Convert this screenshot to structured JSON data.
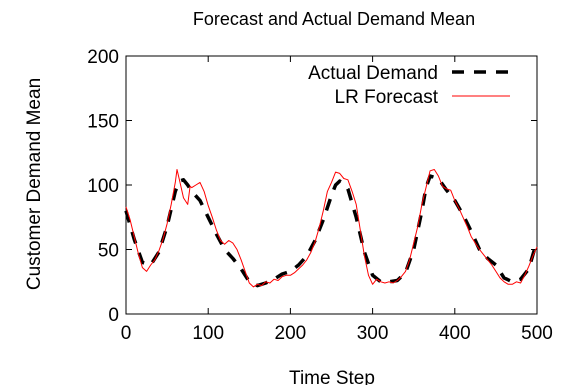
{
  "chart_data": {
    "type": "line",
    "title": "Forecast and Actual Demand Mean",
    "xlabel": "Time Step",
    "ylabel": "Customer Demand Mean",
    "xlim": [
      0,
      500
    ],
    "ylim": [
      0,
      200
    ],
    "xticks": [
      0,
      100,
      200,
      300,
      400,
      500
    ],
    "yticks": [
      0,
      50,
      100,
      150,
      200
    ],
    "grid": false,
    "legend_position": "top-right",
    "series": [
      {
        "name": "Actual Demand",
        "color": "#000000",
        "style": "dashed",
        "x": [
          0,
          10,
          20,
          30,
          40,
          50,
          60,
          65,
          70,
          75,
          80,
          90,
          100,
          110,
          120,
          130,
          140,
          150,
          160,
          170,
          180,
          190,
          200,
          210,
          220,
          230,
          240,
          250,
          255,
          260,
          265,
          270,
          280,
          290,
          300,
          310,
          320,
          330,
          340,
          350,
          360,
          365,
          370,
          380,
          390,
          400,
          410,
          420,
          430,
          440,
          450,
          460,
          470,
          480,
          490,
          500
        ],
        "y": [
          80,
          58,
          40,
          38,
          48,
          68,
          95,
          103,
          104,
          100,
          95,
          88,
          75,
          62,
          50,
          43,
          35,
          25,
          22,
          24,
          27,
          31,
          33,
          38,
          45,
          57,
          73,
          92,
          100,
          103,
          101,
          97,
          75,
          48,
          30,
          25,
          25,
          26,
          32,
          50,
          80,
          98,
          107,
          105,
          96,
          88,
          77,
          64,
          50,
          43,
          38,
          28,
          25,
          27,
          35,
          57
        ]
      },
      {
        "name": "LR Forecast",
        "color": "#ff0000",
        "style": "solid",
        "x": [
          0,
          5,
          10,
          15,
          20,
          25,
          30,
          35,
          40,
          45,
          50,
          55,
          60,
          62,
          65,
          70,
          75,
          78,
          80,
          85,
          90,
          95,
          100,
          105,
          110,
          115,
          120,
          125,
          130,
          135,
          140,
          145,
          150,
          155,
          160,
          165,
          170,
          175,
          180,
          185,
          190,
          195,
          200,
          205,
          210,
          215,
          220,
          225,
          230,
          235,
          240,
          245,
          250,
          255,
          260,
          265,
          270,
          275,
          280,
          285,
          290,
          295,
          300,
          305,
          310,
          315,
          320,
          325,
          330,
          335,
          340,
          345,
          350,
          355,
          360,
          365,
          370,
          375,
          380,
          385,
          390,
          395,
          400,
          405,
          410,
          415,
          420,
          425,
          430,
          435,
          440,
          445,
          450,
          455,
          460,
          465,
          470,
          475,
          480,
          485,
          490,
          495,
          500
        ],
        "y": [
          83,
          73,
          60,
          47,
          36,
          33,
          38,
          42,
          49,
          58,
          70,
          85,
          102,
          112,
          104,
          90,
          85,
          99,
          98,
          100,
          102,
          95,
          84,
          75,
          65,
          57,
          54,
          57,
          55,
          50,
          42,
          33,
          24,
          21,
          23,
          22,
          25,
          24,
          27,
          26,
          29,
          30,
          30,
          32,
          35,
          38,
          42,
          48,
          56,
          67,
          80,
          95,
          102,
          110,
          109,
          105,
          104,
          95,
          85,
          65,
          45,
          30,
          23,
          27,
          25,
          24,
          25,
          24,
          26,
          29,
          33,
          42,
          55,
          68,
          85,
          98,
          111,
          112,
          107,
          99,
          97,
          96,
          88,
          82,
          75,
          68,
          60,
          55,
          50,
          46,
          42,
          38,
          33,
          28,
          25,
          23,
          23,
          25,
          24,
          30,
          37,
          45,
          52
        ]
      }
    ]
  }
}
